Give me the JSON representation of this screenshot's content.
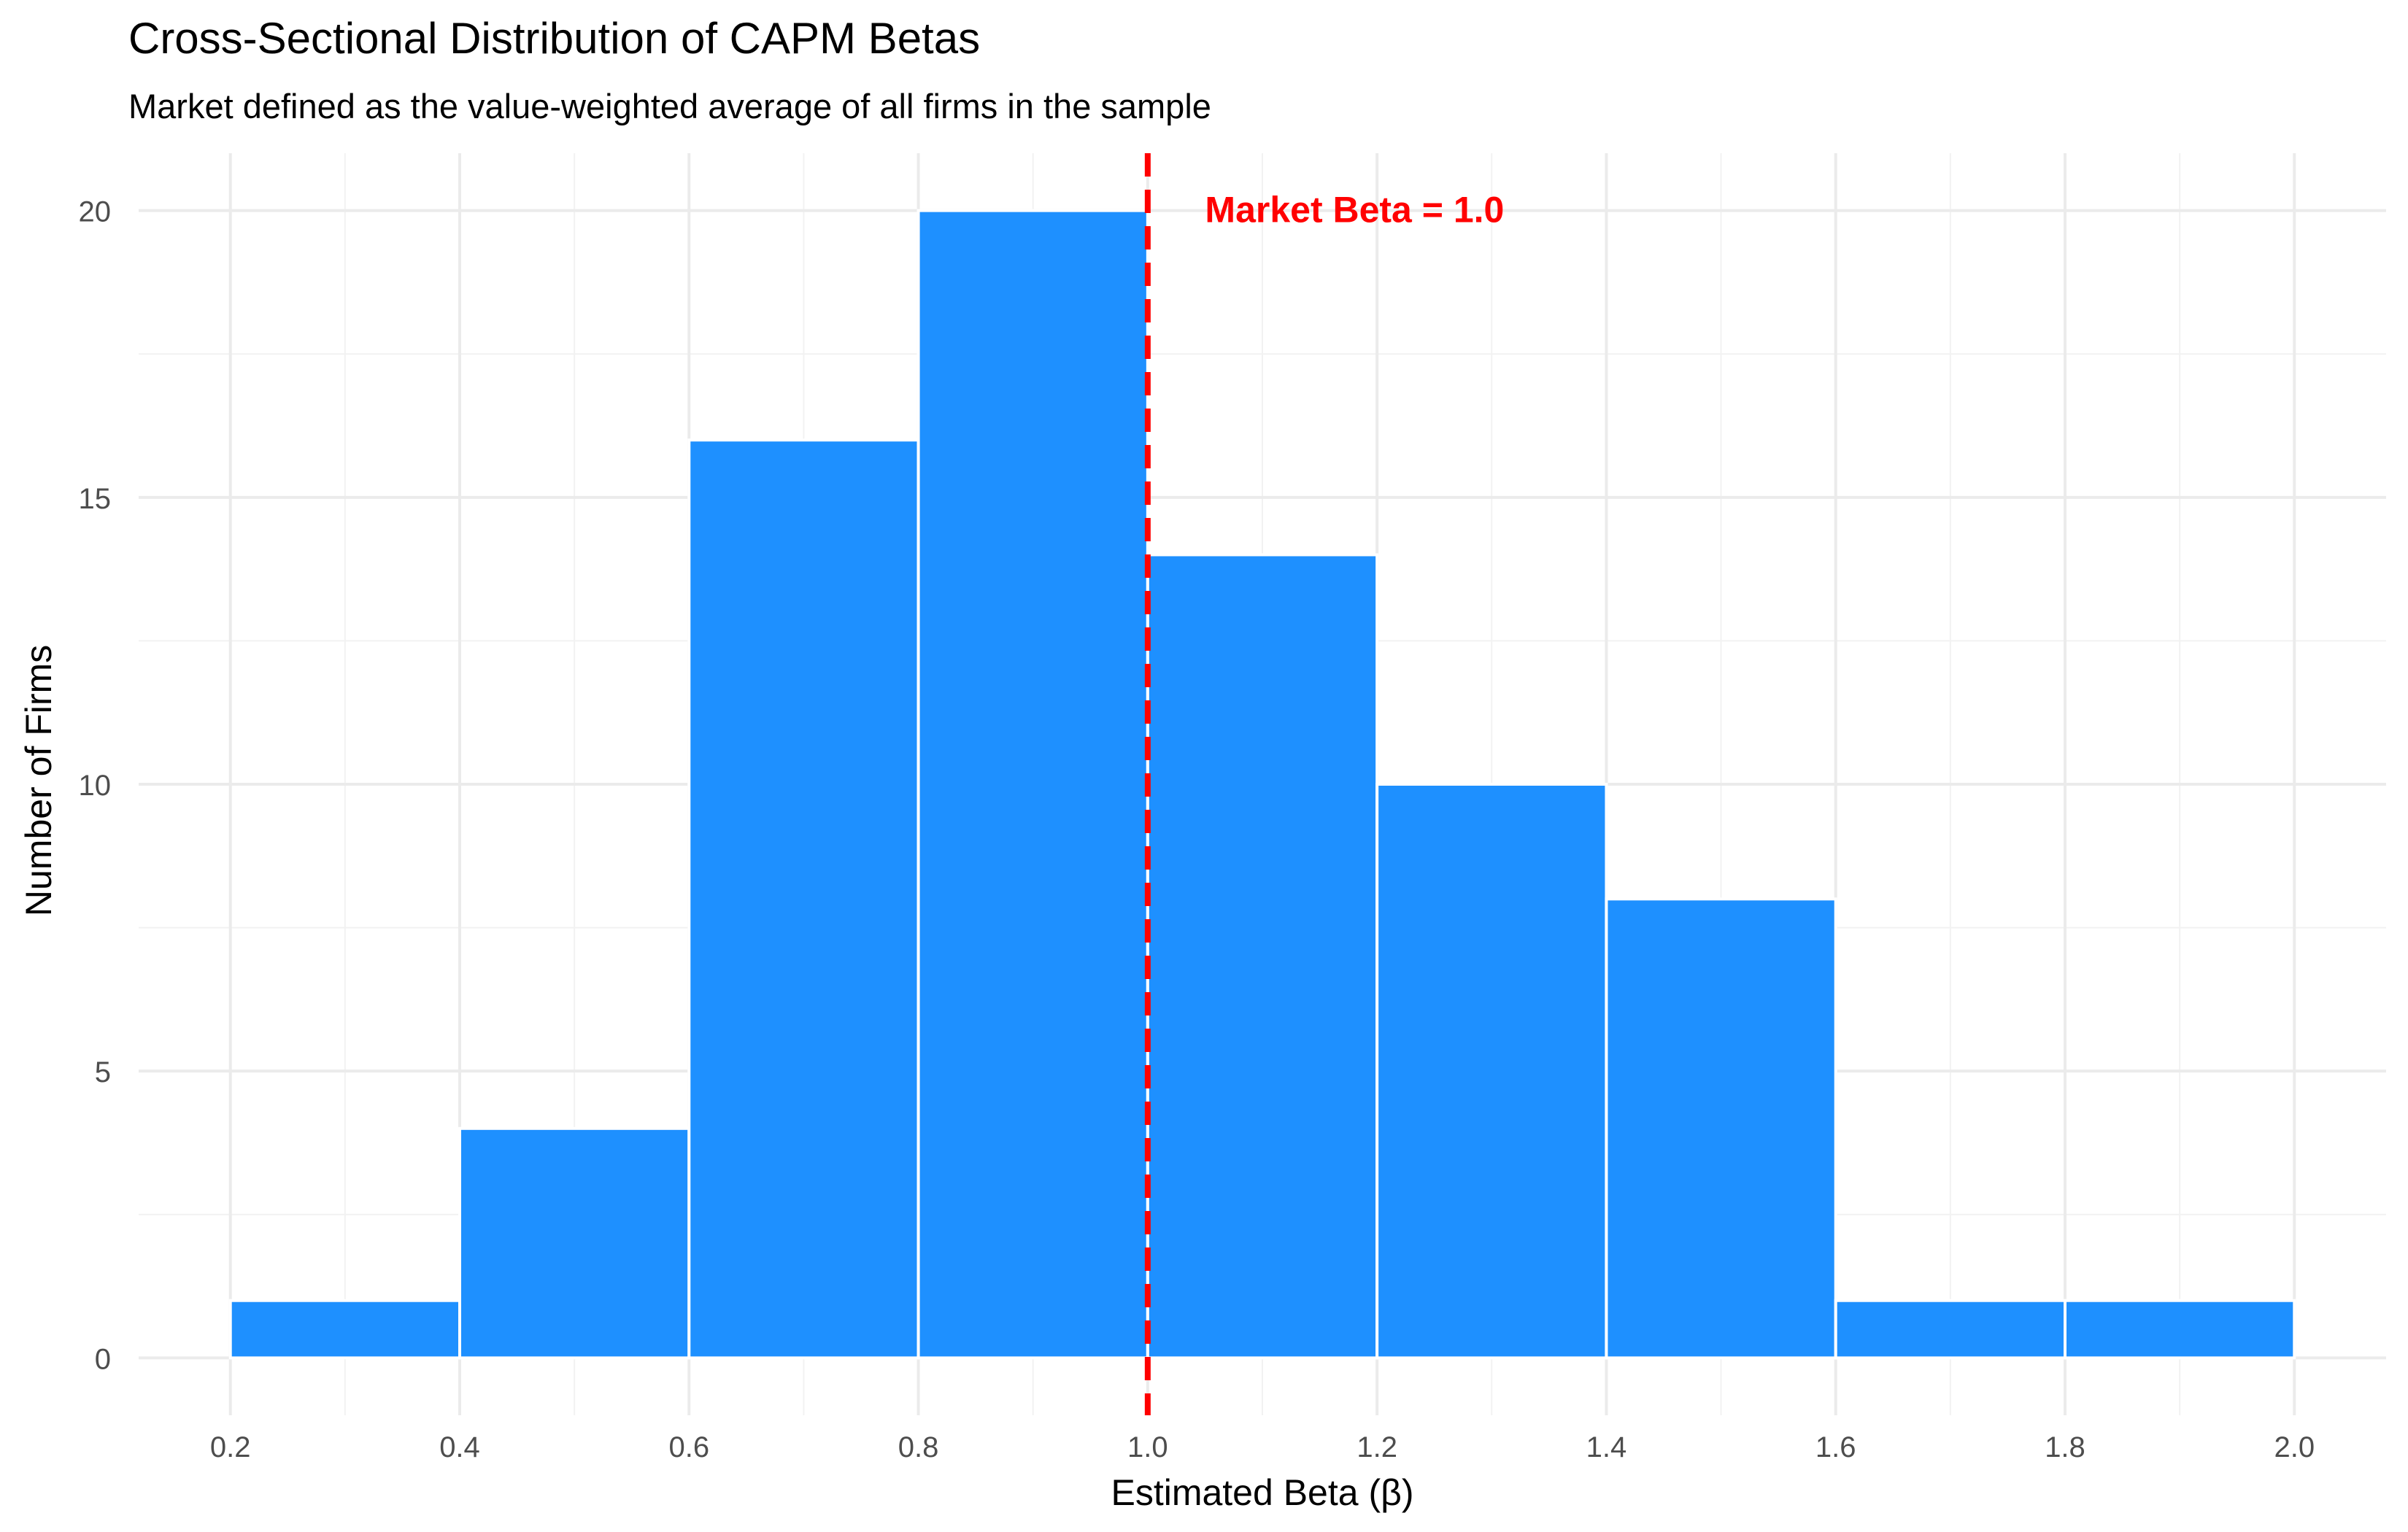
{
  "chart_data": {
    "type": "bar",
    "title": "Cross-Sectional Distribution of CAPM Betas",
    "subtitle": "Market defined as the value-weighted average of all firms in the sample",
    "xlabel": "Estimated Beta (β)",
    "ylabel": "Number of Firms",
    "bins": [
      {
        "x0": 0.2,
        "x1": 0.4,
        "count": 1
      },
      {
        "x0": 0.4,
        "x1": 0.6,
        "count": 4
      },
      {
        "x0": 0.6,
        "x1": 0.8,
        "count": 16
      },
      {
        "x0": 0.8,
        "x1": 1.0,
        "count": 20
      },
      {
        "x0": 1.0,
        "x1": 1.2,
        "count": 14
      },
      {
        "x0": 1.2,
        "x1": 1.4,
        "count": 10
      },
      {
        "x0": 1.4,
        "x1": 1.6,
        "count": 8
      },
      {
        "x0": 1.6,
        "x1": 1.8,
        "count": 1
      },
      {
        "x0": 1.8,
        "x1": 2.0,
        "count": 1
      }
    ],
    "xlim": [
      0.12,
      2.08
    ],
    "ylim": [
      -1,
      21
    ],
    "xticks": [
      0.2,
      0.4,
      0.6,
      0.8,
      1.0,
      1.2,
      1.4,
      1.6,
      1.8,
      2.0
    ],
    "xtick_labels": [
      "0.2",
      "0.4",
      "0.6",
      "0.8",
      "1.0",
      "1.2",
      "1.4",
      "1.6",
      "1.8",
      "2.0"
    ],
    "yticks": [
      0,
      5,
      10,
      15,
      20
    ],
    "ytick_labels": [
      "0",
      "5",
      "10",
      "15",
      "20"
    ],
    "grid": true,
    "bar_color": "#1E90FF",
    "reference_line": {
      "x": 1.0,
      "style": "dashed",
      "color": "#FF0000",
      "label": "Market Beta = 1.0",
      "label_x": 1.05,
      "label_y": 20
    }
  }
}
